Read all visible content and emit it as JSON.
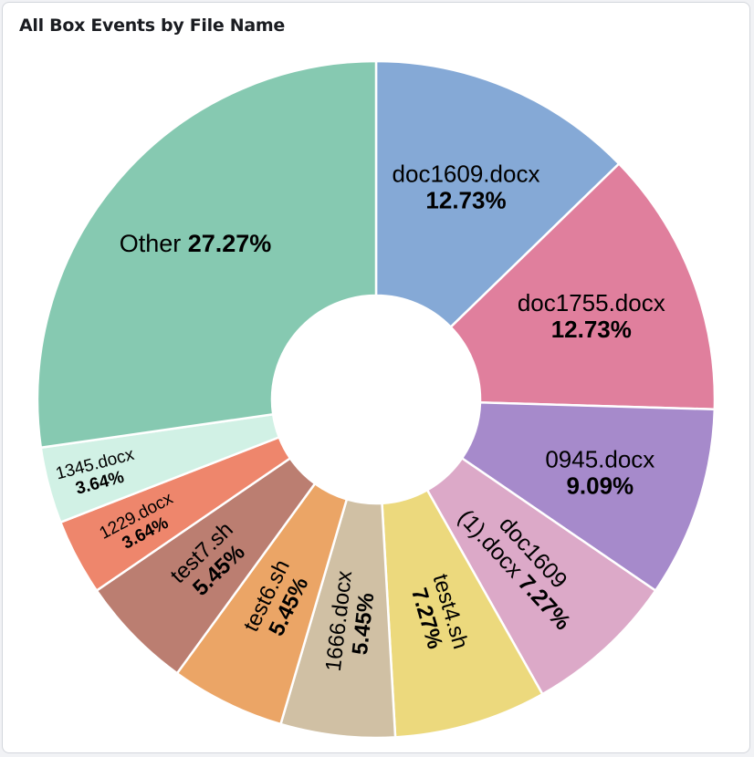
{
  "panel": {
    "title": "All Box Events by File Name"
  },
  "chart_data": {
    "type": "pie",
    "title": "All Box Events by File Name",
    "donut": true,
    "legend": "none",
    "slices": [
      {
        "name": "doc1609.docx",
        "value": 12.73,
        "label": "12.73%",
        "color": "#85a9d6"
      },
      {
        "name": "doc1755.docx",
        "value": 12.73,
        "label": "12.73%",
        "color": "#e07f9d"
      },
      {
        "name": "0945.docx",
        "value": 9.09,
        "label": "9.09%",
        "color": "#a68acb"
      },
      {
        "name": "doc1609 (1).docx",
        "value": 7.27,
        "label": "7.27%",
        "color": "#dca9c8"
      },
      {
        "name": "test4.sh",
        "value": 7.27,
        "label": "7.27%",
        "color": "#ecd97d"
      },
      {
        "name": "1666.docx",
        "value": 5.45,
        "label": "5.45%",
        "color": "#d0c0a4"
      },
      {
        "name": "test6.sh",
        "value": 5.45,
        "label": "5.45%",
        "color": "#eba566"
      },
      {
        "name": "test7.sh",
        "value": 5.45,
        "label": "5.45%",
        "color": "#bb7e71"
      },
      {
        "name": "1229.docx",
        "value": 3.64,
        "label": "3.64%",
        "color": "#ee866c"
      },
      {
        "name": "1345.docx",
        "value": 3.64,
        "label": "3.64%",
        "color": "#d1f1e5"
      },
      {
        "name": "Other",
        "value": 27.27,
        "label": "27.27%",
        "color": "#86c9b1"
      }
    ]
  }
}
